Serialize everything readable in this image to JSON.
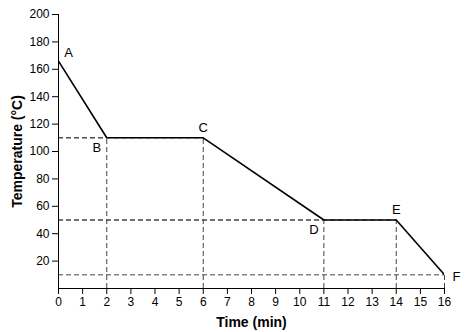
{
  "chart_data": {
    "type": "line",
    "x": [
      0,
      2,
      6,
      11,
      14,
      16
    ],
    "values": [
      166,
      110,
      110,
      50,
      50,
      10
    ],
    "point_labels": [
      "A",
      "B",
      "C",
      "D",
      "E",
      "F"
    ],
    "color": "#000000",
    "xlabel": "Time (min)",
    "ylabel": "Temperature (°C)",
    "xlim": [
      0,
      16
    ],
    "ylim": [
      0,
      200
    ],
    "xticks": [
      0,
      1,
      2,
      3,
      4,
      5,
      6,
      7,
      8,
      9,
      10,
      11,
      12,
      13,
      14,
      15,
      16
    ],
    "yticks": [
      20,
      40,
      60,
      80,
      100,
      120,
      140,
      160,
      180,
      200
    ],
    "grid": false
  }
}
